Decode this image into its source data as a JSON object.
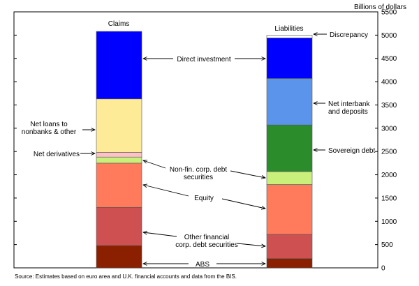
{
  "chart_data": {
    "type": "bar",
    "stacked": true,
    "unit_label": "Billions of dollars",
    "source": "Source: Estimates based on euro area and U.K. financial accounts and data from the BIS.",
    "y_axis": {
      "min": 0,
      "max": 5500,
      "ticks": [
        0,
        500,
        1000,
        1500,
        2000,
        2500,
        3000,
        3500,
        4000,
        4500,
        5000,
        5500
      ],
      "position": "right"
    },
    "grid": false,
    "categories": [
      "Claims",
      "Liabilities"
    ],
    "colors": {
      "abs": "#8b2000",
      "other_financial": "#cf5050",
      "equity": "#ff7b5c",
      "nonfin": "#c8f07a",
      "net_derivatives": "#ffc0c8",
      "net_loans": "#fdeb98",
      "direct_investment": "#0000ff",
      "sovereign": "#2a8c2a",
      "interbank": "#5b94eb",
      "discrepancy": "#ffffff"
    },
    "claims": [
      {
        "key": "abs",
        "label": "ABS",
        "value": 480
      },
      {
        "key": "other_financial",
        "label": "Other financial corp. debt securities",
        "value": 820
      },
      {
        "key": "equity",
        "label": "Equity",
        "value": 950
      },
      {
        "key": "nonfin",
        "label": "Non-fin. corp. debt securities",
        "value": 130
      },
      {
        "key": "net_derivatives",
        "label": "Net derivatives",
        "value": 100
      },
      {
        "key": "net_loans",
        "label": "Net loans to nonbanks & other",
        "value": 1150
      },
      {
        "key": "direct_investment",
        "label": "Direct investment",
        "value": 1450
      }
    ],
    "liabilities": [
      {
        "key": "abs",
        "label": "ABS",
        "value": 200
      },
      {
        "key": "other_financial",
        "label": "Other financial corp. debt securities",
        "value": 520
      },
      {
        "key": "equity",
        "label": "Equity",
        "value": 1070
      },
      {
        "key": "nonfin",
        "label": "Non-fin. corp. debt securities",
        "value": 280
      },
      {
        "key": "sovereign",
        "label": "Sovereign debt",
        "value": 1000
      },
      {
        "key": "interbank",
        "label": "Net interbank and deposits",
        "value": 1000
      },
      {
        "key": "direct_investment",
        "label": "Direct investment",
        "value": 870
      },
      {
        "key": "discrepancy",
        "label": "Discrepancy",
        "value": 60
      }
    ],
    "annotations": {
      "direct_investment": "Direct investment",
      "net_loans": [
        "Net loans to",
        "nonbanks & other"
      ],
      "net_derivatives": "Net derivatives",
      "nonfin": [
        "Non-fin. corp. debt",
        "securities"
      ],
      "equity": "Equity",
      "other_financial": [
        "Other financial",
        "corp. debt securities"
      ],
      "abs": "ABS",
      "discrepancy": "Discrepancy",
      "interbank": [
        "Net interbank",
        "and deposits"
      ],
      "sovereign": "Sovereign debt"
    }
  }
}
